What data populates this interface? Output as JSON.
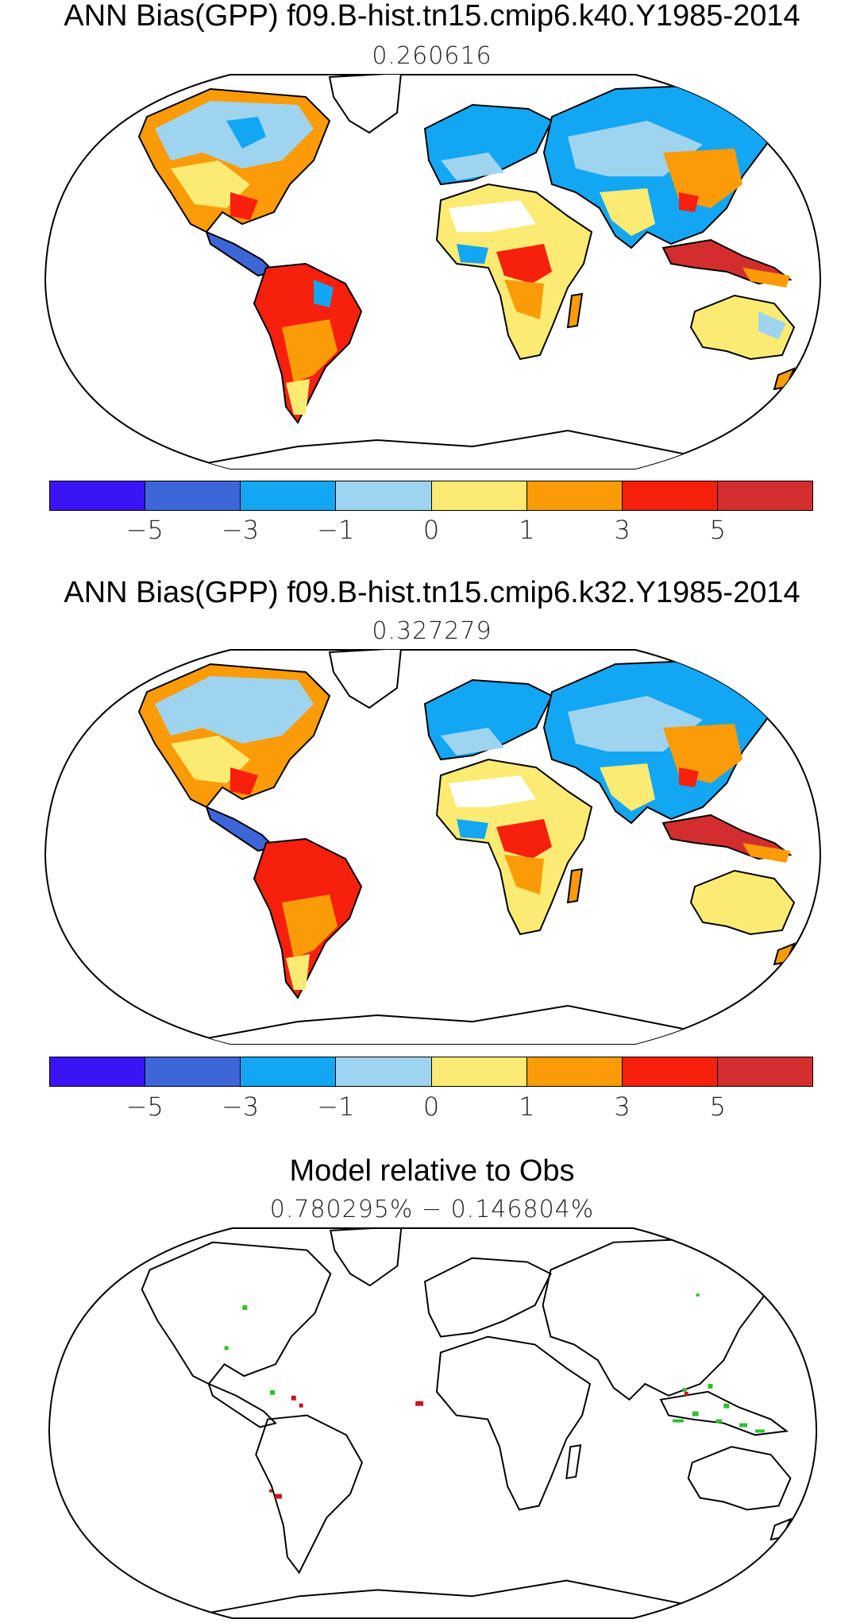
{
  "panels": [
    {
      "title": "ANN Bias(GPP) f09.B-hist.tn15.cmip6.k40.Y1985-2014",
      "subtitle": "0.260616"
    },
    {
      "title": "ANN Bias(GPP) f09.B-hist.tn15.cmip6.k32.Y1985-2014",
      "subtitle": "0.327279"
    },
    {
      "title": "Model relative to Obs",
      "subtitle": "0.780295% − 0.146804%"
    }
  ],
  "colorbar": {
    "colors": [
      "#3a14f5",
      "#3d66d9",
      "#12a6f3",
      "#9fd4ef",
      "#fceb72",
      "#fb9b08",
      "#f7200c",
      "#d22e2e"
    ],
    "tick_labels": [
      "−5",
      "−3",
      "−1",
      "0",
      "1",
      "3",
      "5"
    ]
  },
  "colors": {
    "coast": "#000000",
    "better": "#2ec02e",
    "worse": "#c8141e"
  }
}
